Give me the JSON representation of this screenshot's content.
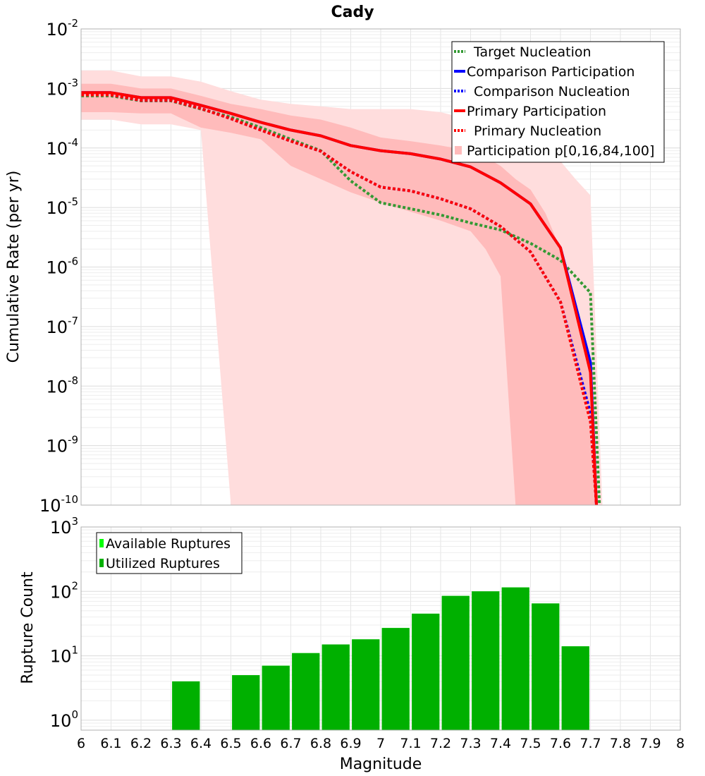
{
  "chart_data": [
    {
      "type": "line",
      "title": "Cady",
      "ylabel": "Cumulative Rate (per yr)",
      "xlabel": "",
      "xlim": [
        6,
        8
      ],
      "ylim": [
        1e-10,
        0.01
      ],
      "yscale": "log",
      "grid": true,
      "legend_position": "top-right",
      "y_tick_labels": [
        {
          "base": "10",
          "exp": "-2",
          "value": 0.01
        },
        {
          "base": "10",
          "exp": "-3",
          "value": 0.001
        },
        {
          "base": "10",
          "exp": "-4",
          "value": 0.0001
        },
        {
          "base": "10",
          "exp": "-5",
          "value": 1e-05
        },
        {
          "base": "10",
          "exp": "-6",
          "value": 1e-06
        },
        {
          "base": "10",
          "exp": "-7",
          "value": 1e-07
        },
        {
          "base": "10",
          "exp": "-8",
          "value": 1e-08
        },
        {
          "base": "10",
          "exp": "-9",
          "value": 1e-09
        },
        {
          "base": "10",
          "exp": "-10",
          "value": 1e-10
        }
      ],
      "series": [
        {
          "name": "Target Nucleation",
          "color": "#339933",
          "style": "dotted",
          "x": [
            6.0,
            6.1,
            6.2,
            6.3,
            6.4,
            6.5,
            6.6,
            6.7,
            6.8,
            6.9,
            7.0,
            7.1,
            7.2,
            7.3,
            7.4,
            7.5,
            7.6,
            7.7,
            7.73
          ],
          "y": [
            0.00075,
            0.00075,
            0.00062,
            0.00062,
            0.00045,
            0.00033,
            0.00022,
            0.00014,
            9e-05,
            2.8e-05,
            1.2e-05,
            9.5e-06,
            7.5e-06,
            5.5e-06,
            4.2e-06,
            2.5e-06,
            1.3e-06,
            3.7e-07,
            1e-10
          ]
        },
        {
          "name": "Comparison Participation",
          "color": "#0000ff",
          "style": "solid",
          "x": [
            6.0,
            6.1,
            6.2,
            6.3,
            6.4,
            6.5,
            6.6,
            6.7,
            6.8,
            6.9,
            7.0,
            7.1,
            7.2,
            7.3,
            7.4,
            7.5,
            7.6,
            7.7,
            7.72
          ],
          "y": [
            0.00085,
            0.00085,
            0.0007,
            0.0007,
            0.00052,
            0.00038,
            0.00027,
            0.0002,
            0.00016,
            0.00011,
            9e-05,
            8e-05,
            6.5e-05,
            4.8e-05,
            2.6e-05,
            1.15e-05,
            2.1e-06,
            2.5e-08,
            1e-10
          ]
        },
        {
          "name": "Comparison Nucleation",
          "color": "#0000ff",
          "style": "dotted",
          "x": [
            6.0,
            6.1,
            6.2,
            6.3,
            6.4,
            6.5,
            6.6,
            6.7,
            6.8,
            6.9,
            7.0,
            7.1,
            7.2,
            7.3,
            7.4,
            7.5,
            7.6,
            7.7,
            7.72
          ],
          "y": [
            0.00078,
            0.00078,
            0.00063,
            0.00063,
            0.00046,
            0.00031,
            0.0002,
            0.00013,
            8.8e-05,
            4e-05,
            2.2e-05,
            1.9e-05,
            1.4e-05,
            9.5e-06,
            4.8e-06,
            1.8e-06,
            2.6e-07,
            3.5e-09,
            1e-10
          ]
        },
        {
          "name": "Primary Participation",
          "color": "#ff0000",
          "style": "solid",
          "x": [
            6.0,
            6.1,
            6.2,
            6.3,
            6.4,
            6.5,
            6.6,
            6.7,
            6.8,
            6.9,
            7.0,
            7.1,
            7.2,
            7.3,
            7.4,
            7.5,
            7.6,
            7.7,
            7.72
          ],
          "y": [
            0.00085,
            0.00085,
            0.0007,
            0.0007,
            0.00052,
            0.00038,
            0.00027,
            0.0002,
            0.00016,
            0.00011,
            9e-05,
            8e-05,
            6.5e-05,
            4.8e-05,
            2.6e-05,
            1.15e-05,
            2.1e-06,
            1.7e-08,
            1e-10
          ]
        },
        {
          "name": "Primary Nucleation",
          "color": "#ff0000",
          "style": "dotted",
          "x": [
            6.0,
            6.1,
            6.2,
            6.3,
            6.4,
            6.5,
            6.6,
            6.7,
            6.8,
            6.9,
            7.0,
            7.1,
            7.2,
            7.3,
            7.4,
            7.5,
            7.6,
            7.7,
            7.72
          ],
          "y": [
            0.00078,
            0.00078,
            0.00063,
            0.00063,
            0.00046,
            0.00031,
            0.0002,
            0.00013,
            8.8e-05,
            4e-05,
            2.2e-05,
            1.9e-05,
            1.4e-05,
            9.5e-06,
            4.8e-06,
            1.8e-06,
            2.6e-07,
            2.5e-09,
            1e-10
          ]
        }
      ],
      "bands": [
        {
          "name": "Participation p[0,16,84,100]",
          "color": "#ffdddd",
          "percentiles": "0-100",
          "x": [
            6.0,
            6.1,
            6.2,
            6.3,
            6.4,
            6.5,
            6.6,
            6.7,
            6.8,
            6.9,
            7.0,
            7.1,
            7.2,
            7.3,
            7.4,
            7.5,
            7.6,
            7.65,
            7.7,
            7.74
          ],
          "lo": [
            0.0003,
            0.0003,
            0.00025,
            0.00025,
            0.0002,
            1e-10,
            1e-10,
            1e-10,
            1e-10,
            1e-10,
            1e-10,
            1e-10,
            1e-10,
            1e-10,
            1e-10,
            1e-10,
            1e-10,
            1e-10,
            1e-10,
            1e-10
          ],
          "hi": [
            0.002,
            0.002,
            0.0016,
            0.0016,
            0.0013,
            0.0009,
            0.00065,
            0.00055,
            0.0005,
            0.00045,
            0.00045,
            0.00045,
            0.0004,
            0.0003,
            0.00023,
            0.00015,
            6e-05,
            3e-05,
            1.6e-05,
            1e-10
          ]
        },
        {
          "name": "Participation p[16,84]",
          "color": "#ffbbbb",
          "percentiles": "16-84",
          "x": [
            6.0,
            6.1,
            6.2,
            6.3,
            6.4,
            6.5,
            6.6,
            6.7,
            6.8,
            6.9,
            7.0,
            7.1,
            7.2,
            7.3,
            7.35,
            7.4,
            7.45,
            7.5,
            7.55,
            7.6,
            7.65,
            7.7,
            7.72
          ],
          "lo": [
            0.0004,
            0.0004,
            0.00038,
            0.00038,
            0.00022,
            0.00018,
            0.00014,
            5e-05,
            3e-05,
            1.8e-05,
            1.2e-05,
            8.5e-06,
            6e-06,
            4e-06,
            2e-06,
            7e-07,
            1e-10,
            1e-10,
            1e-10,
            1e-10,
            1e-10,
            1e-10,
            1e-10
          ],
          "hi": [
            0.0012,
            0.0012,
            0.001,
            0.001,
            0.00075,
            0.00055,
            0.00045,
            0.00035,
            0.0003,
            0.00022,
            0.00015,
            0.00013,
            0.00011,
            9e-05,
            7e-05,
            5e-05,
            3e-05,
            2e-05,
            8e-06,
            2e-06,
            2e-07,
            2e-08,
            1e-10
          ]
        }
      ],
      "legend": [
        "Target Nucleation",
        "Comparison Participation",
        "Comparison Nucleation",
        "Primary Participation",
        "Primary Nucleation",
        "Participation p[0,16,84,100]"
      ]
    },
    {
      "type": "bar",
      "title": "",
      "xlabel": "Magnitude",
      "ylabel": "Rupture Count",
      "xlim": [
        6,
        8
      ],
      "ylim": [
        0.7,
        1000
      ],
      "yscale": "log",
      "grid": true,
      "legend_position": "top-left",
      "x_ticks": [
        "6",
        "6.1",
        "6.2",
        "6.3",
        "6.4",
        "6.5",
        "6.6",
        "6.7",
        "6.8",
        "6.9",
        "7",
        "7.1",
        "7.2",
        "7.3",
        "7.4",
        "7.5",
        "7.6",
        "7.7",
        "7.8",
        "7.9",
        "8"
      ],
      "y_tick_labels": [
        {
          "base": "10",
          "exp": "3",
          "value": 1000
        },
        {
          "base": "10",
          "exp": "2",
          "value": 100
        },
        {
          "base": "10",
          "exp": "1",
          "value": 10
        },
        {
          "base": "10",
          "exp": "0",
          "value": 1
        }
      ],
      "series": [
        {
          "name": "Available Ruptures",
          "color": "#00ff00",
          "x": [
            6.35,
            6.55,
            6.65,
            6.75,
            6.85,
            6.95,
            7.05,
            7.15,
            7.25,
            7.35,
            7.45,
            7.55,
            7.65
          ],
          "values": [
            4,
            5,
            7,
            11,
            15,
            18,
            27,
            45,
            85,
            100,
            115,
            65,
            14
          ]
        },
        {
          "name": "Utilized Ruptures",
          "color": "#00b000",
          "x": [
            6.35,
            6.55,
            6.65,
            6.75,
            6.85,
            6.95,
            7.05,
            7.15,
            7.25,
            7.35,
            7.45,
            7.55,
            7.65
          ],
          "values": [
            4,
            5,
            7,
            11,
            15,
            18,
            27,
            45,
            85,
            100,
            115,
            65,
            14
          ]
        }
      ],
      "legend": [
        "Available Ruptures",
        "Utilized Ruptures"
      ]
    }
  ]
}
